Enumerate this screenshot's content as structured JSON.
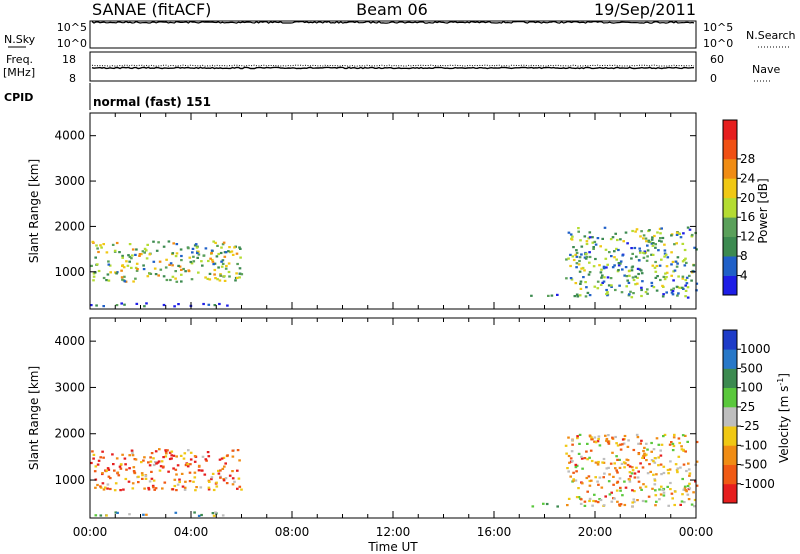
{
  "header": {
    "station": "SANAE (fitACF)",
    "beam": "Beam 06",
    "date": "19/Sep/2011"
  },
  "panels": {
    "nsky_label": "N.Sky",
    "nsearch_label": "N.Search",
    "freq_label_1": "Freq.",
    "freq_label_2": "[MHz]",
    "nave_label": "Nave",
    "cpid_label": "CPID",
    "mode_label": "normal (fast) 151",
    "log_tick_high": "10^5",
    "log_tick_low": "10^0"
  },
  "colors": {
    "power_scale": [
      "#1e1ee6",
      "#2060c8",
      "#3c8a50",
      "#5aa05a",
      "#b4dc32",
      "#f0c814",
      "#f08c14",
      "#f05014",
      "#e61e1e"
    ],
    "velocity_scale": [
      "#e61e1e",
      "#f05a14",
      "#f08c14",
      "#f0c814",
      "#bebebe",
      "#5ac83c",
      "#3c8a50",
      "#2878c8",
      "#1e3cc8"
    ]
  },
  "chart_data": [
    {
      "type": "line",
      "name": "N.Sky / N.Search",
      "ylim_left": [
        "10^0",
        "10^5"
      ],
      "ylim_right": [
        "10^0",
        "10^5"
      ],
      "yticks_left": [
        "10^5",
        "10^0"
      ],
      "yticks_right": [
        "10^5",
        "10^0"
      ],
      "level": 0.95
    },
    {
      "type": "line",
      "name": "Freq / Nave",
      "ylim_left": [
        8,
        18
      ],
      "ylim_right": [
        0,
        60
      ],
      "yticks_left": [
        "18",
        "8"
      ],
      "yticks_right": [
        "60",
        "0"
      ],
      "level": 0.45
    },
    {
      "type": "heatmap",
      "ylabel": "Slant Range [km]",
      "ylim": [
        180,
        4500
      ],
      "yticks": [
        1000,
        2000,
        3000,
        4000
      ],
      "xlim": [
        0,
        24
      ],
      "colorbar_label": "Power [dB]",
      "colorbar_ticks": [
        "4",
        "8",
        "12",
        "16",
        "20",
        "24",
        "28"
      ],
      "scatter_regions": [
        {
          "t0": 0.0,
          "t1": 6.0,
          "r0": 800,
          "r1": 1700,
          "level": 0.45
        },
        {
          "t0": 0.0,
          "t1": 5.5,
          "r0": 250,
          "r1": 330,
          "level": 0.15
        },
        {
          "t0": 18.8,
          "t1": 24.0,
          "r0": 450,
          "r1": 2000,
          "level": 0.35
        },
        {
          "t0": 17.3,
          "t1": 18.8,
          "r0": 450,
          "r1": 520,
          "level": 0.2
        }
      ]
    },
    {
      "type": "heatmap",
      "xlabel": "Time UT",
      "ylabel": "Slant Range [km]",
      "ylim": [
        180,
        4500
      ],
      "yticks": [
        1000,
        2000,
        3000,
        4000
      ],
      "xlim": [
        0,
        24
      ],
      "xticks": [
        "00:00",
        "04:00",
        "08:00",
        "12:00",
        "16:00",
        "20:00",
        "00:00"
      ],
      "colorbar_label": "Velocity [m s",
      "colorbar_exponent": "-1",
      "colorbar_ticks": [
        "1000",
        "500",
        "100",
        "25",
        "-25",
        "-100",
        "-500",
        "-1000"
      ],
      "scatter_regions": [
        {
          "t0": 0.0,
          "t1": 6.0,
          "r0": 800,
          "r1": 1700,
          "level": 0.2
        },
        {
          "t0": 0.0,
          "t1": 5.5,
          "r0": 250,
          "r1": 330,
          "level": 0.6
        },
        {
          "t0": 18.8,
          "t1": 24.0,
          "r0": 450,
          "r1": 2000,
          "level": 0.35
        },
        {
          "t0": 17.3,
          "t1": 18.8,
          "r0": 450,
          "r1": 520,
          "level": 0.55
        }
      ]
    }
  ]
}
